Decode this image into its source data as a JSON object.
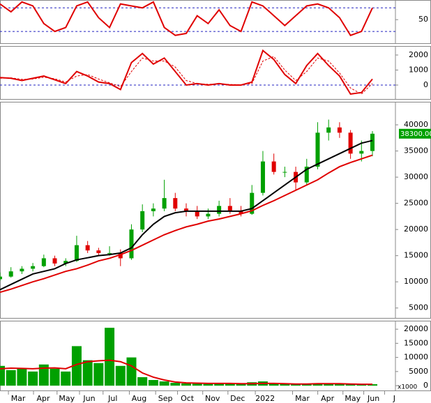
{
  "chart_data": [
    {
      "type": "line",
      "x": [
        0,
        1,
        2,
        3,
        4,
        5,
        6,
        7,
        8,
        9,
        10,
        11,
        12,
        13,
        14,
        15,
        16,
        17,
        18,
        19,
        20,
        21,
        22,
        23,
        24,
        25,
        26,
        27,
        28,
        29,
        30,
        31,
        32,
        33,
        34
      ],
      "series": [
        {
          "color": "#e00000",
          "values": [
            90,
            70,
            95,
            85,
            40,
            20,
            30,
            85,
            95,
            55,
            30,
            90,
            85,
            80,
            95,
            30,
            10,
            15,
            60,
            40,
            75,
            35,
            20,
            95,
            85,
            60,
            35,
            60,
            85,
            90,
            80,
            55,
            10,
            20,
            80
          ]
        }
      ],
      "ylim": [
        -10,
        100
      ],
      "yticks": [
        50
      ],
      "hlines": [
        20,
        80
      ]
    },
    {
      "type": "line",
      "x": [
        0,
        1,
        2,
        3,
        4,
        5,
        6,
        7,
        8,
        9,
        10,
        11,
        12,
        13,
        14,
        15,
        16,
        17,
        18,
        19,
        20,
        21,
        22,
        23,
        24,
        25,
        26,
        27,
        28,
        29,
        30,
        31,
        32,
        33,
        34
      ],
      "series": [
        {
          "color": "#e00000",
          "values": [
            500,
            450,
            300,
            450,
            600,
            350,
            100,
            900,
            600,
            200,
            100,
            -300,
            1500,
            2100,
            1400,
            1800,
            900,
            0,
            100,
            0,
            100,
            0,
            0,
            200,
            2300,
            1700,
            700,
            100,
            1300,
            2100,
            1300,
            600,
            -600,
            -500,
            400
          ]
        },
        {
          "color": "#e00000",
          "dash": true,
          "values": [
            450,
            480,
            380,
            400,
            520,
            420,
            200,
            600,
            700,
            400,
            150,
            -100,
            900,
            1800,
            1600,
            1600,
            1200,
            300,
            100,
            50,
            80,
            40,
            20,
            100,
            1600,
            1900,
            1000,
            300,
            900,
            1800,
            1600,
            800,
            -200,
            -600,
            100
          ]
        }
      ],
      "ylim": [
        -930,
        2600
      ],
      "yticks": [
        0,
        1000,
        2000
      ],
      "hlines": [
        0
      ]
    },
    {
      "type": "candlestick",
      "x": [
        0,
        1,
        2,
        3,
        4,
        5,
        6,
        7,
        8,
        9,
        10,
        11,
        12,
        13,
        14,
        15,
        16,
        17,
        18,
        19,
        20,
        21,
        22,
        23,
        24,
        25,
        26,
        27,
        28,
        29,
        30,
        31,
        32,
        33,
        34
      ],
      "open": [
        10500,
        11000,
        12000,
        12500,
        13000,
        14500,
        13500,
        14000,
        17000,
        16000,
        15500,
        15500,
        14500,
        20000,
        23500,
        24000,
        26000,
        24000,
        23500,
        22500,
        23000,
        24500,
        23500,
        23000,
        27000,
        33000,
        31000,
        31000,
        29000,
        32000,
        38500,
        39500,
        38500,
        34500,
        35000
      ],
      "high": [
        11800,
        12800,
        13000,
        13600,
        15200,
        15000,
        14500,
        18800,
        17800,
        16500,
        16800,
        16200,
        21000,
        24800,
        25000,
        29500,
        27000,
        25000,
        24500,
        24000,
        25500,
        26000,
        24500,
        28500,
        35000,
        34500,
        32000,
        32000,
        33500,
        40500,
        41000,
        40500,
        39000,
        37000,
        38800
      ],
      "low": [
        10200,
        10800,
        11500,
        12000,
        12800,
        13000,
        13000,
        13800,
        15500,
        15000,
        15000,
        13000,
        14200,
        19500,
        22500,
        23500,
        23500,
        22500,
        22000,
        22000,
        22500,
        23000,
        22500,
        22800,
        26500,
        30500,
        30000,
        27500,
        28500,
        31500,
        37000,
        37500,
        33500,
        33000,
        34000
      ],
      "close": [
        11000,
        12000,
        12500,
        13000,
        14500,
        13500,
        14000,
        17000,
        16000,
        15500,
        15500,
        14500,
        20000,
        23500,
        24000,
        26000,
        24000,
        23500,
        22500,
        23000,
        24500,
        23500,
        23000,
        27000,
        33000,
        31000,
        31000,
        29000,
        32000,
        38500,
        39500,
        38500,
        34500,
        35000,
        38300
      ],
      "up_color": "#00a000",
      "down_color": "#e00000",
      "series": [
        {
          "color": "#000000",
          "values": [
            8500,
            9500,
            10500,
            11500,
            12000,
            12500,
            13500,
            14200,
            14600,
            15000,
            15200,
            15500,
            16500,
            19000,
            21000,
            22500,
            23200,
            23500,
            23500,
            23500,
            23500,
            23500,
            23500,
            24000,
            25500,
            27000,
            28500,
            30000,
            31500,
            32500,
            33500,
            34500,
            35500,
            36500,
            37000
          ]
        },
        {
          "color": "#e00000",
          "values": [
            8000,
            8600,
            9300,
            10000,
            10600,
            11300,
            12000,
            12500,
            13200,
            14000,
            14500,
            15200,
            16000,
            17000,
            18000,
            19000,
            19800,
            20500,
            21000,
            21600,
            22000,
            22500,
            23000,
            23600,
            24600,
            25500,
            26500,
            27500,
            28500,
            29500,
            30800,
            32000,
            32800,
            33500,
            34200
          ]
        }
      ],
      "last_label": "38300.00",
      "ylim": [
        3100,
        44400
      ],
      "yticks": [
        5000,
        10000,
        15000,
        20000,
        25000,
        30000,
        35000,
        40000
      ]
    },
    {
      "type": "bar",
      "x": [
        0,
        1,
        2,
        3,
        4,
        5,
        6,
        7,
        8,
        9,
        10,
        11,
        12,
        13,
        14,
        15,
        16,
        17,
        18,
        19,
        20,
        21,
        22,
        23,
        24,
        25,
        26,
        27,
        28,
        29,
        30,
        31,
        32,
        33,
        34
      ],
      "values": [
        7000,
        5500,
        6000,
        5000,
        7500,
        6000,
        5000,
        14000,
        9000,
        8000,
        20500,
        7000,
        10000,
        3000,
        2000,
        1500,
        1000,
        800,
        700,
        600,
        800,
        700,
        600,
        1200,
        1500,
        800,
        600,
        500,
        700,
        900,
        800,
        600,
        500,
        400,
        500
      ],
      "color": "#00a000",
      "series": [
        {
          "color": "#e00000",
          "values": [
            6000,
            6200,
            6100,
            6000,
            6200,
            6300,
            6000,
            7500,
            8500,
            8800,
            9000,
            8500,
            7000,
            4500,
            3000,
            2000,
            1300,
            1000,
            900,
            800,
            800,
            800,
            700,
            700,
            800,
            800,
            700,
            600,
            600,
            700,
            700,
            700,
            600,
            500,
            500
          ]
        }
      ],
      "unit_label": "x1000",
      "ylim": [
        -1700,
        23000
      ],
      "yticks": [
        0,
        5000,
        10000,
        15000,
        20000
      ],
      "xlim": [
        0,
        36.1
      ],
      "xticks": [
        {
          "value": 1.66,
          "label": "Mar"
        },
        {
          "value": 3.95,
          "label": "Apr"
        },
        {
          "value": 6.1,
          "label": "May"
        },
        {
          "value": 8.15,
          "label": "Jun"
        },
        {
          "value": 10.3,
          "label": "Jul"
        },
        {
          "value": 12.7,
          "label": "Aug"
        },
        {
          "value": 15.1,
          "label": "Sep"
        },
        {
          "value": 17.1,
          "label": "Oct"
        },
        {
          "value": 19.4,
          "label": "Nov"
        },
        {
          "value": 21.7,
          "label": "Dec"
        },
        {
          "value": 24.2,
          "label": "2022"
        },
        {
          "value": 27.6,
          "label": "Mar"
        },
        {
          "value": 29.9,
          "label": "Apr"
        },
        {
          "value": 32.2,
          "label": "May"
        },
        {
          "value": 34.1,
          "label": "Jun"
        },
        {
          "value": 36.0,
          "label": "J"
        }
      ]
    }
  ]
}
